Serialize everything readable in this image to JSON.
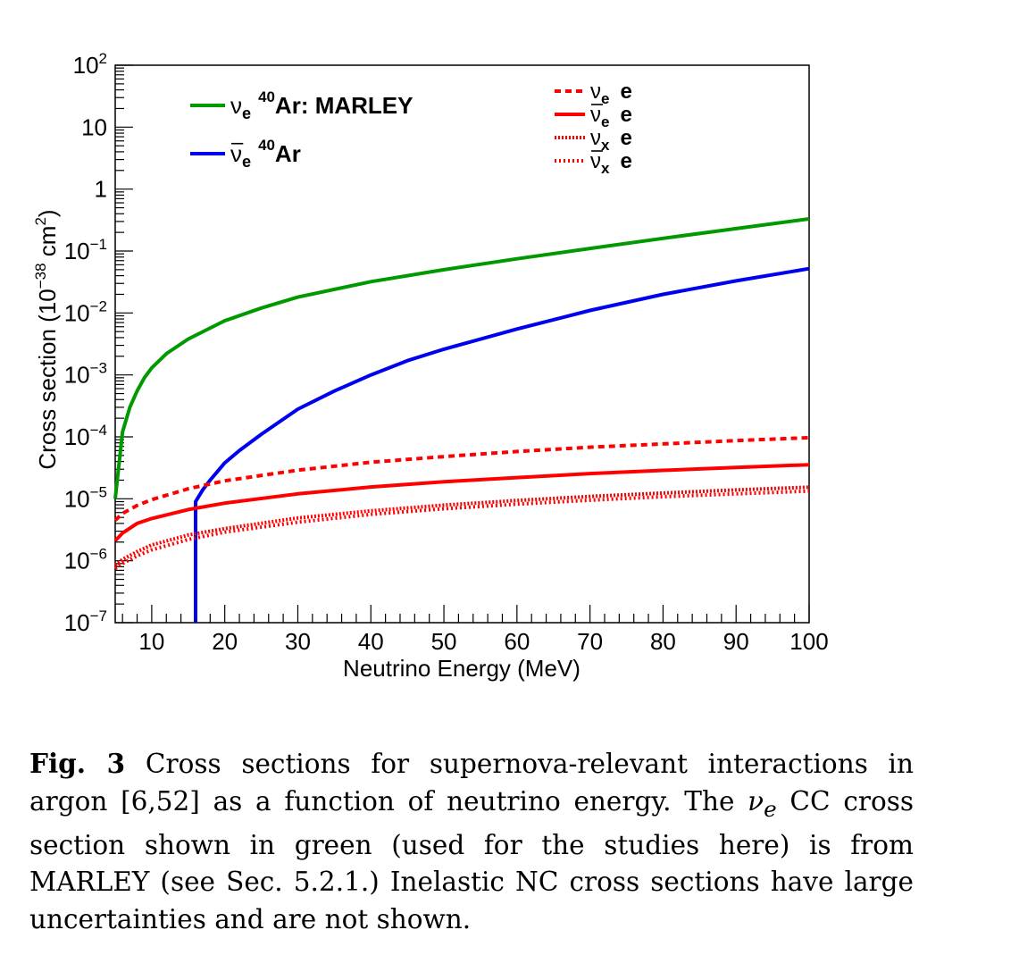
{
  "chart_data": {
    "type": "line",
    "xlabel": "Neutrino Energy (MeV)",
    "ylabel": "Cross section (10",
    "ylabel_exp": "−38",
    "ylabel_tail": " cm",
    "ylabel_sq": "2",
    "ylabel_close": ")",
    "xlim": [
      5,
      100
    ],
    "ylim": [
      1e-07,
      100
    ],
    "yscale": "log",
    "x_ticks": [
      "10",
      "20",
      "30",
      "40",
      "50",
      "60",
      "70",
      "80",
      "90",
      "100"
    ],
    "y_ticks": [
      {
        "base": "10",
        "exp": "−7"
      },
      {
        "base": "10",
        "exp": "−6"
      },
      {
        "base": "10",
        "exp": "−5"
      },
      {
        "base": "10",
        "exp": "−4"
      },
      {
        "base": "10",
        "exp": "−3"
      },
      {
        "base": "10",
        "exp": "−2"
      },
      {
        "base": "10",
        "exp": "−1"
      },
      {
        "base": "1",
        "exp": ""
      },
      {
        "base": "10",
        "exp": ""
      },
      {
        "base": "10",
        "exp": "2"
      }
    ],
    "legend_left": [
      {
        "nu": "ν",
        "sub": "e",
        "sup": "40",
        "text": "Ar: MARLEY",
        "bar": false,
        "color": "#009900"
      },
      {
        "nu": "ν",
        "sub": "e",
        "sup": "40",
        "text": "Ar",
        "bar": true,
        "color": "#0000ee"
      }
    ],
    "legend_right": [
      {
        "nu": "ν",
        "sub": "e",
        "text": "e",
        "bar": false,
        "color": "#ff0000",
        "dash": "7,5"
      },
      {
        "nu": "ν",
        "sub": "e",
        "text": "e",
        "bar": true,
        "color": "#ff0000",
        "dash": ""
      },
      {
        "nu": "ν",
        "sub": "x",
        "text": "e",
        "bar": false,
        "color": "#ff0000",
        "dash": "2,2"
      },
      {
        "nu": "ν",
        "sub": "x",
        "text": "e",
        "bar": true,
        "color": "#ff0000",
        "dash": "2,3"
      }
    ],
    "series": [
      {
        "name": "νe 40Ar: MARLEY",
        "color": "#009900",
        "width": 4,
        "dash": "",
        "x": [
          5,
          6,
          7,
          8,
          9,
          10,
          12,
          15,
          20,
          25,
          30,
          40,
          50,
          60,
          70,
          80,
          90,
          100
        ],
        "y": [
          1e-05,
          0.00012,
          0.0003,
          0.00055,
          0.0009,
          0.0013,
          0.0022,
          0.0038,
          0.0075,
          0.012,
          0.018,
          0.032,
          0.05,
          0.075,
          0.11,
          0.16,
          0.23,
          0.33
        ]
      },
      {
        "name": "ν̄e 40Ar",
        "color": "#0000ee",
        "width": 4,
        "dash": "",
        "x": [
          16,
          16,
          17,
          18,
          20,
          22,
          25,
          30,
          35,
          40,
          45,
          50,
          60,
          70,
          80,
          90,
          100
        ],
        "y": [
          1e-07,
          9e-06,
          1.4e-05,
          2e-05,
          3.8e-05,
          6e-05,
          0.00011,
          0.00028,
          0.00055,
          0.001,
          0.0017,
          0.0026,
          0.0055,
          0.011,
          0.02,
          0.033,
          0.052
        ]
      },
      {
        "name": "νe e",
        "color": "#ff0000",
        "width": 4,
        "dash": "7,5",
        "x": [
          5,
          6,
          8,
          10,
          15,
          20,
          30,
          40,
          50,
          60,
          70,
          80,
          90,
          100
        ],
        "y": [
          4.5e-06,
          5.8e-06,
          7.8e-06,
          9.7e-06,
          1.45e-05,
          1.95e-05,
          2.9e-05,
          3.9e-05,
          4.8e-05,
          5.8e-05,
          6.8e-05,
          7.7e-05,
          8.7e-05,
          9.7e-05
        ]
      },
      {
        "name": "ν̄e e",
        "color": "#ff0000",
        "width": 4,
        "dash": "",
        "x": [
          5,
          6,
          8,
          10,
          15,
          20,
          30,
          40,
          50,
          60,
          70,
          80,
          90,
          100
        ],
        "y": [
          2.1e-06,
          2.8e-06,
          4e-06,
          4.8e-06,
          6.7e-06,
          8.5e-06,
          1.2e-05,
          1.55e-05,
          1.88e-05,
          2.2e-05,
          2.55e-05,
          2.88e-05,
          3.2e-05,
          3.55e-05
        ]
      },
      {
        "name": "νx e",
        "color": "#ff0000",
        "width": 4,
        "dash": "2,2",
        "x": [
          5,
          6,
          8,
          10,
          15,
          20,
          30,
          40,
          50,
          60,
          70,
          80,
          90,
          100
        ],
        "y": [
          8.5e-07,
          1.05e-06,
          1.4e-06,
          1.8e-06,
          2.6e-06,
          3.3e-06,
          4.9e-06,
          6.4e-06,
          7.9e-06,
          9.4e-06,
          1.09e-05,
          1.24e-05,
          1.39e-05,
          1.54e-05
        ]
      },
      {
        "name": "ν̄x e",
        "color": "#ff0000",
        "width": 4,
        "dash": "2,3",
        "x": [
          5,
          6,
          8,
          10,
          15,
          20,
          30,
          40,
          50,
          60,
          70,
          80,
          90,
          100
        ],
        "y": [
          7.5e-07,
          9e-07,
          1.2e-06,
          1.5e-06,
          2.2e-06,
          2.9e-06,
          4.2e-06,
          5.6e-06,
          6.9e-06,
          8.2e-06,
          9.5e-06,
          1.08e-05,
          1.2e-05,
          1.33e-05
        ]
      }
    ]
  },
  "caption": {
    "label": "Fig. 3",
    "text1": " Cross sections for supernova-relevant interactions in argon [6,52] as a function of neutrino energy. The ",
    "nu": "ν",
    "sub": "e",
    "text2": " CC cross section shown in green (used for the studies here) is from MARLEY (see Sec. 5.2.1.) Inelastic NC cross sections have large uncertainties and are not shown."
  }
}
